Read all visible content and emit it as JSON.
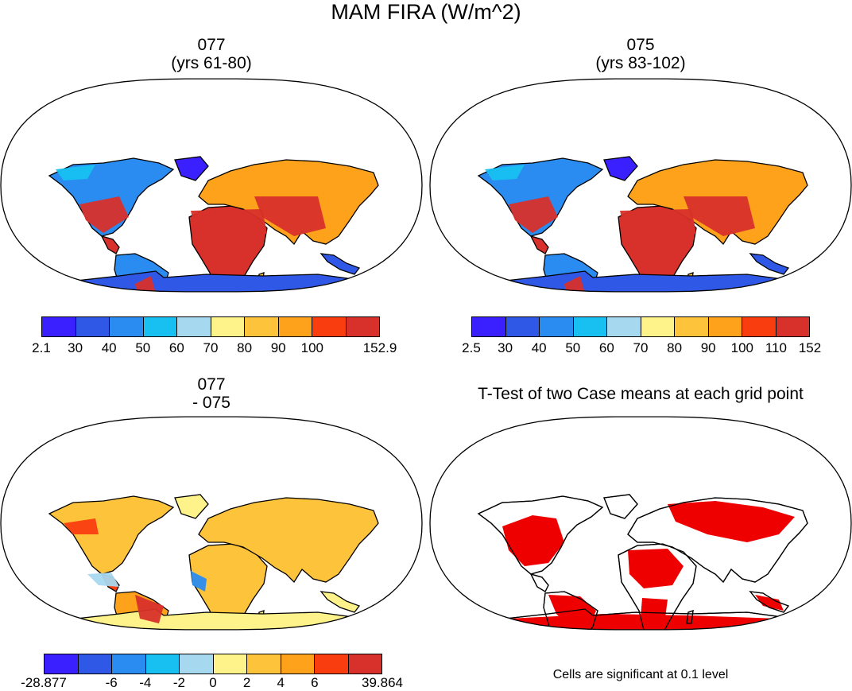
{
  "title": "MAM FIRA (W/m^2)",
  "panels": [
    {
      "id": "p077",
      "title_line1": "077",
      "title_line2": "(yrs 61-80)",
      "colorbar": {
        "colors": [
          "#3a1fff",
          "#2f58e6",
          "#2a8cf0",
          "#17c0f0",
          "#a6d8f0",
          "#fef38a",
          "#fdc33a",
          "#fda21a",
          "#fa3d0f",
          "#d8302a"
        ],
        "labels": [
          "2.1",
          "30",
          "40",
          "50",
          "60",
          "70",
          "80",
          "90",
          "100",
          "",
          "152.9"
        ]
      }
    },
    {
      "id": "p075",
      "title_line1": "075",
      "title_line2": "(yrs 83-102)",
      "colorbar": {
        "colors": [
          "#3a1fff",
          "#2f58e6",
          "#2a8cf0",
          "#17c0f0",
          "#a6d8f0",
          "#fef38a",
          "#fdc33a",
          "#fda21a",
          "#fa3d0f",
          "#d8302a"
        ],
        "labels": [
          "2.5",
          "30",
          "40",
          "50",
          "60",
          "70",
          "80",
          "90",
          "100",
          "110",
          "152"
        ]
      }
    },
    {
      "id": "pdiff",
      "title_line1": "077",
      "title_line2": "- 075",
      "colorbar": {
        "colors": [
          "#3a1fff",
          "#2f58e6",
          "#2a8cf0",
          "#17c0f0",
          "#a6d8f0",
          "#fef38a",
          "#fdc33a",
          "#fda21a",
          "#fa3d0f",
          "#d8302a"
        ],
        "labels": [
          "-28.877",
          "",
          "-6",
          "-4",
          "-2",
          "0",
          "2",
          "4",
          "6",
          "",
          "39.864"
        ]
      }
    },
    {
      "id": "pttest",
      "title_line1": "T-Test of two Case means at each grid point",
      "title_line2": "",
      "note": "Cells are significant at 0.1 level",
      "sig_color": "#ee0000"
    }
  ]
}
